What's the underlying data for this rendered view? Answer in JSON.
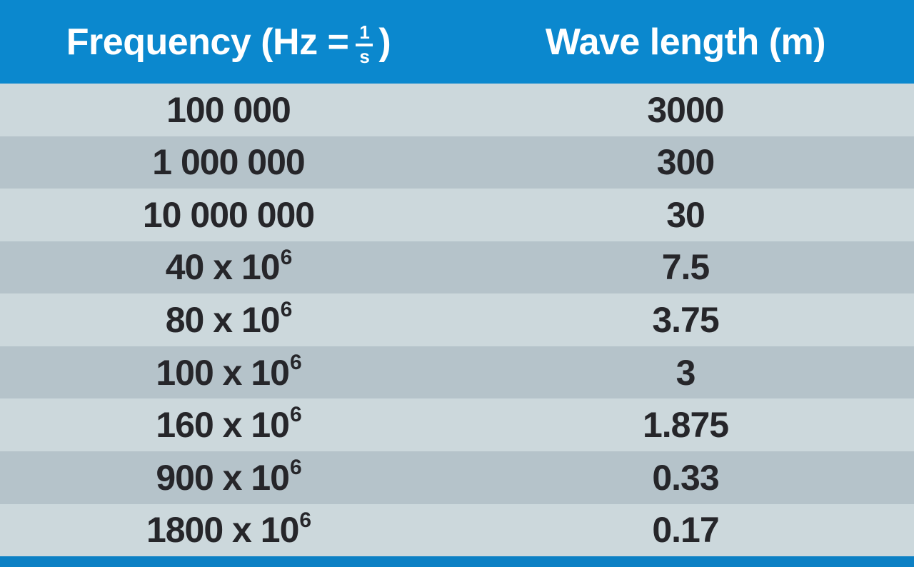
{
  "table": {
    "header": {
      "frequency_label_prefix": "Frequency (Hz =",
      "fraction_numerator": "1",
      "fraction_denominator": "s",
      "frequency_label_suffix": ")",
      "wavelength_label": "Wave length (m)"
    },
    "rows": [
      {
        "frequency_base": "100 000",
        "frequency_exponent": "",
        "wavelength": "3000"
      },
      {
        "frequency_base": "1 000 000",
        "frequency_exponent": "",
        "wavelength": "300"
      },
      {
        "frequency_base": "10 000 000",
        "frequency_exponent": "",
        "wavelength": "30"
      },
      {
        "frequency_base": "40 x 10",
        "frequency_exponent": "6",
        "wavelength": "7.5"
      },
      {
        "frequency_base": "80 x 10",
        "frequency_exponent": "6",
        "wavelength": "3.75"
      },
      {
        "frequency_base": "100 x 10",
        "frequency_exponent": "6",
        "wavelength": "3"
      },
      {
        "frequency_base": "160 x 10",
        "frequency_exponent": "6",
        "wavelength": "1.875"
      },
      {
        "frequency_base": "900 x 10",
        "frequency_exponent": "6",
        "wavelength": "0.33"
      },
      {
        "frequency_base": "1800 x 10",
        "frequency_exponent": "6",
        "wavelength": "0.17"
      }
    ],
    "colors": {
      "header_blue": "#0b88ce",
      "bottom_bar_blue": "#0c80c4",
      "row_light": "#ccd8dc",
      "row_dark": "#b5c3ca",
      "text_dark": "#26262a",
      "header_text": "#ffffff"
    }
  },
  "chart_data": {
    "type": "table",
    "title": "",
    "columns": [
      "Frequency (Hz = 1/s)",
      "Wave length (m)"
    ],
    "rows": [
      [
        "100 000",
        "3000"
      ],
      [
        "1 000 000",
        "300"
      ],
      [
        "10 000 000",
        "30"
      ],
      [
        "40 x 10^6",
        "7.5"
      ],
      [
        "80 x 10^6",
        "3.75"
      ],
      [
        "100 x 10^6",
        "3"
      ],
      [
        "160 x 10^6",
        "1.875"
      ],
      [
        "900 x 10^6",
        "0.33"
      ],
      [
        "1800 x 10^6",
        "0.17"
      ]
    ],
    "frequency_hz": [
      100000,
      1000000,
      10000000,
      40000000,
      80000000,
      100000000,
      160000000,
      900000000,
      1800000000
    ],
    "wavelength_m": [
      3000,
      300,
      30,
      7.5,
      3.75,
      3,
      1.875,
      0.33,
      0.17
    ]
  }
}
